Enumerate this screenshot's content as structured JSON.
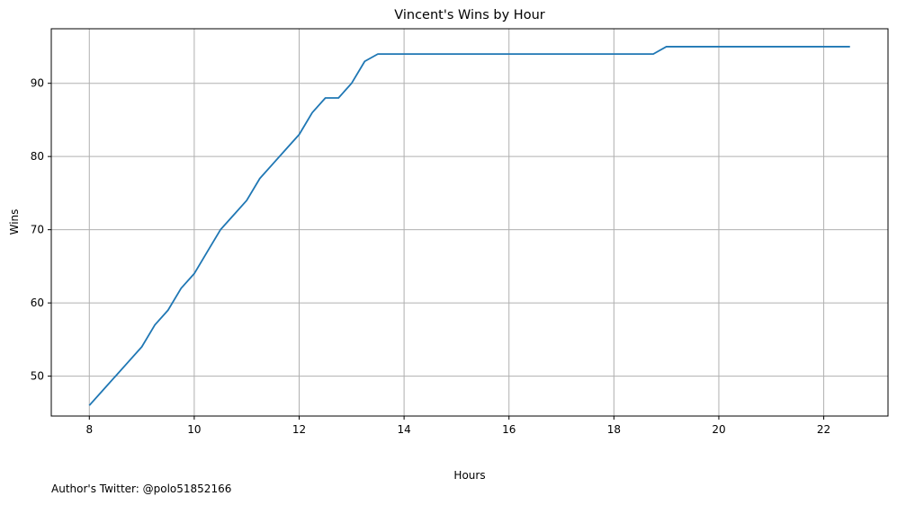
{
  "chart_data": {
    "type": "line",
    "title": "Vincent's Wins by Hour",
    "xlabel": "Hours",
    "ylabel": "Wins",
    "xlim": [
      7.275,
      23.225
    ],
    "ylim": [
      44.55,
      97.45
    ],
    "xticks": [
      8,
      10,
      12,
      14,
      16,
      18,
      20,
      22
    ],
    "yticks": [
      50,
      60,
      70,
      80,
      90
    ],
    "grid": true,
    "series": [
      {
        "color": "#1f77b4",
        "x": [
          8,
          8.25,
          8.5,
          8.75,
          9,
          9.25,
          9.5,
          9.75,
          10,
          10.25,
          10.5,
          10.75,
          11,
          11.25,
          11.5,
          11.75,
          12,
          12.25,
          12.5,
          12.75,
          13,
          13.25,
          13.5,
          18.75,
          19,
          22.5
        ],
        "y": [
          46,
          48,
          50,
          52,
          54,
          57,
          59,
          62,
          64,
          67,
          70,
          72,
          74,
          77,
          79,
          81,
          83,
          86,
          88,
          88,
          90,
          93,
          94,
          94,
          95,
          95
        ]
      }
    ]
  },
  "footer_text": "Author's Twitter: @polo51852166"
}
